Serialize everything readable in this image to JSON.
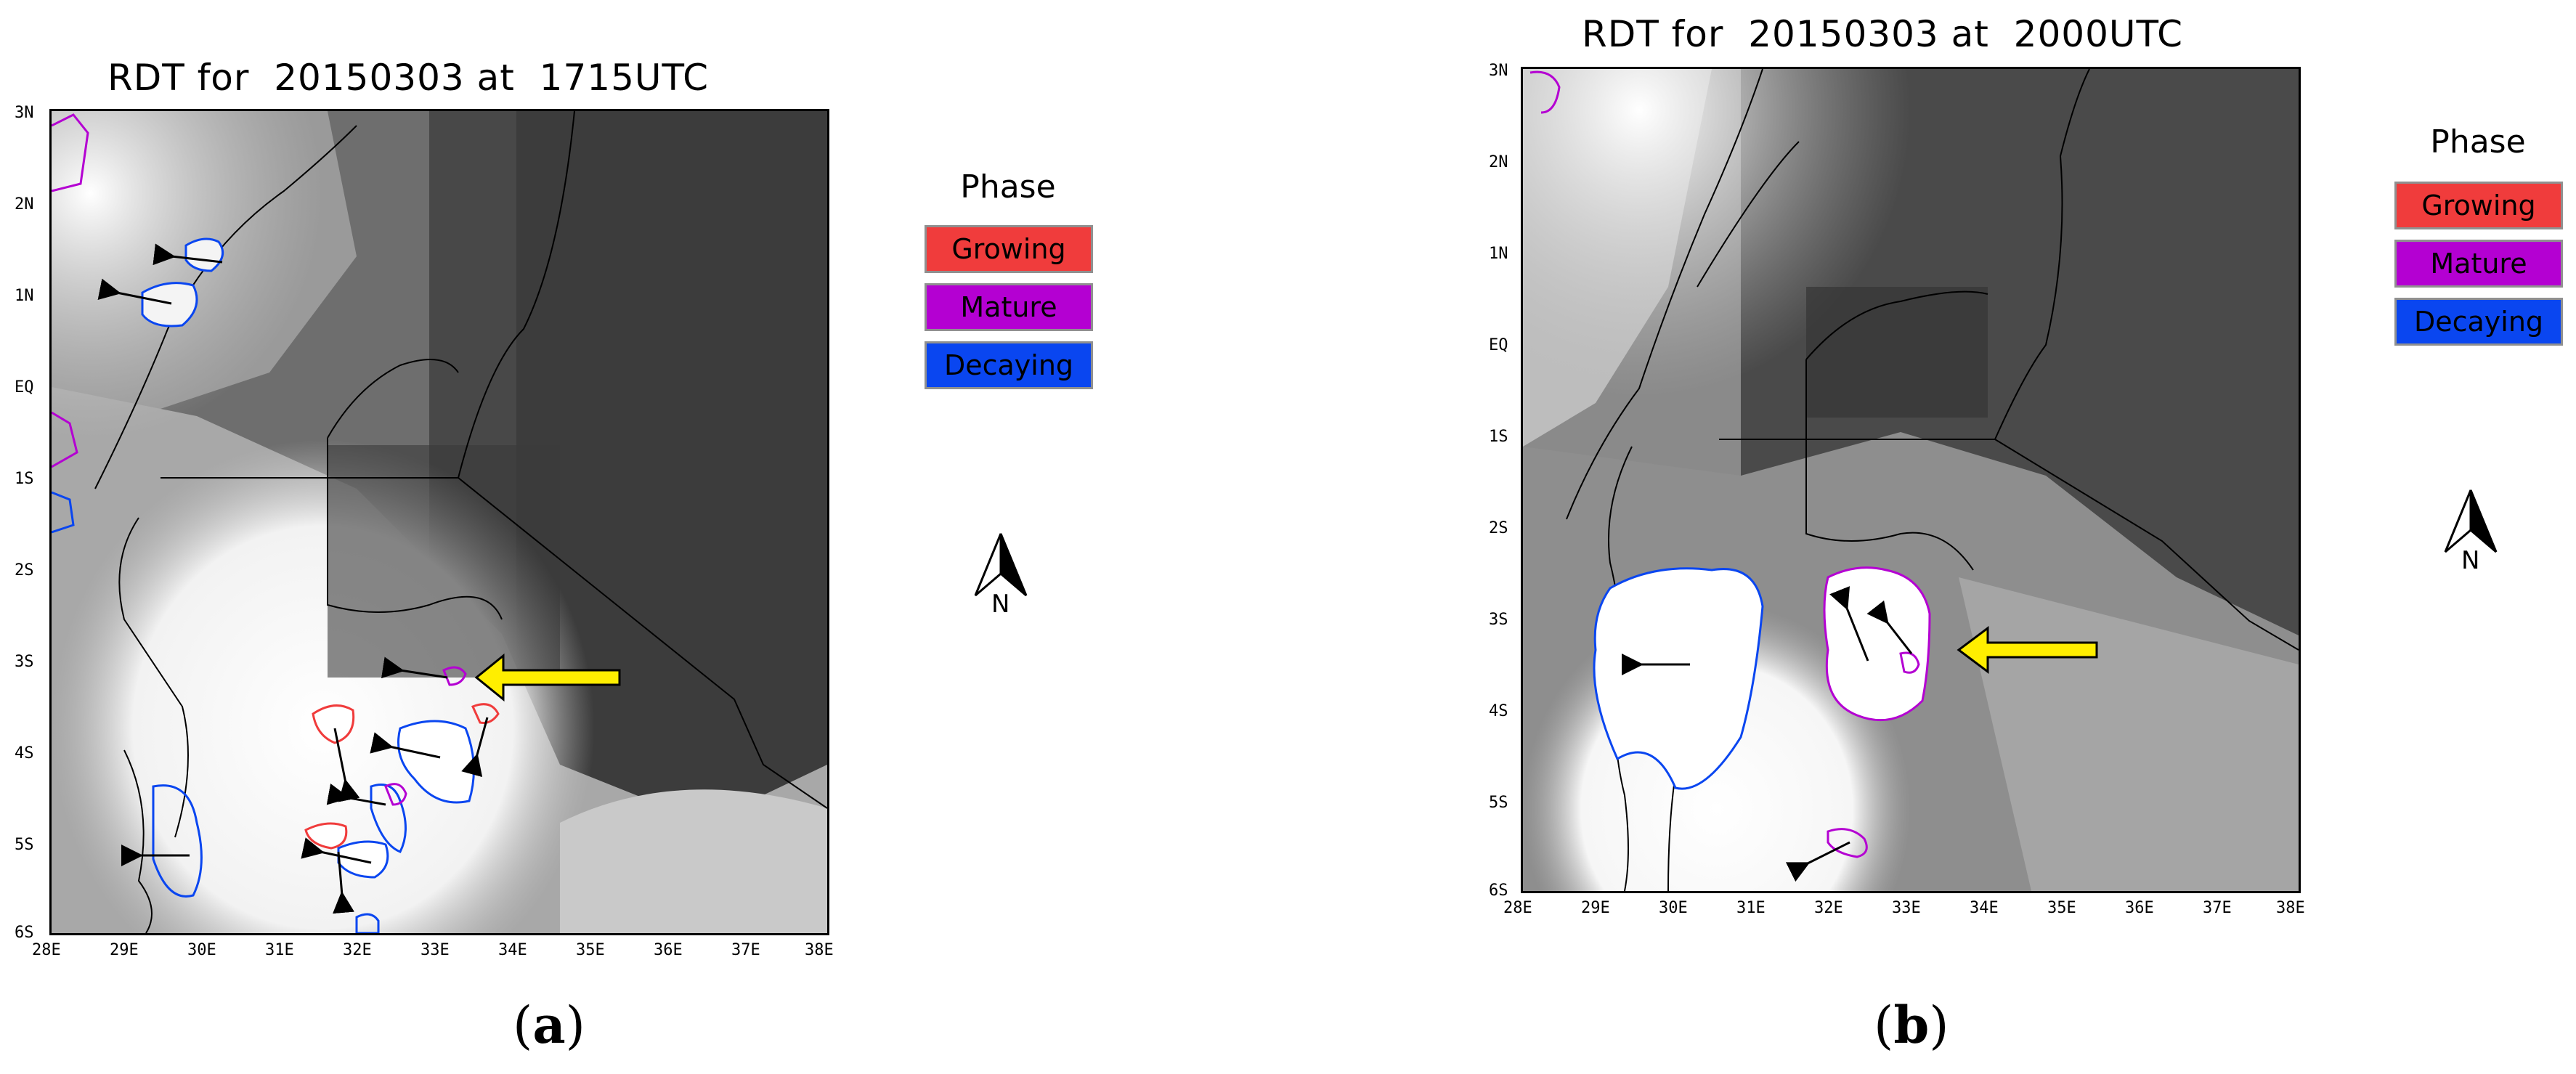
{
  "panels": [
    {
      "title": "RDT for  20150303 at  1715UTC",
      "caption_open": "(",
      "caption_letter": "a",
      "caption_close": ")"
    },
    {
      "title": "RDT for  20150303 at  2000UTC",
      "caption_open": "(",
      "caption_letter": "b",
      "caption_close": ")"
    }
  ],
  "y_ticks": [
    "3N",
    "2N",
    "1N",
    "EQ",
    "1S",
    "2S",
    "3S",
    "4S",
    "5S",
    "6S"
  ],
  "x_ticks": [
    "28E",
    "29E",
    "30E",
    "31E",
    "32E",
    "33E",
    "34E",
    "35E",
    "36E",
    "37E",
    "38E"
  ],
  "legend": {
    "title": "Phase",
    "items": [
      {
        "label": "Growing",
        "color": "#f03c3c"
      },
      {
        "label": "Mature",
        "color": "#b400d2"
      },
      {
        "label": "Decaying",
        "color": "#0a46f0"
      }
    ]
  },
  "north_label": "N",
  "colors": {
    "growing": "#f03c3c",
    "mature": "#b400d2",
    "decaying": "#0a46f0",
    "arrow": "#ffee00"
  }
}
